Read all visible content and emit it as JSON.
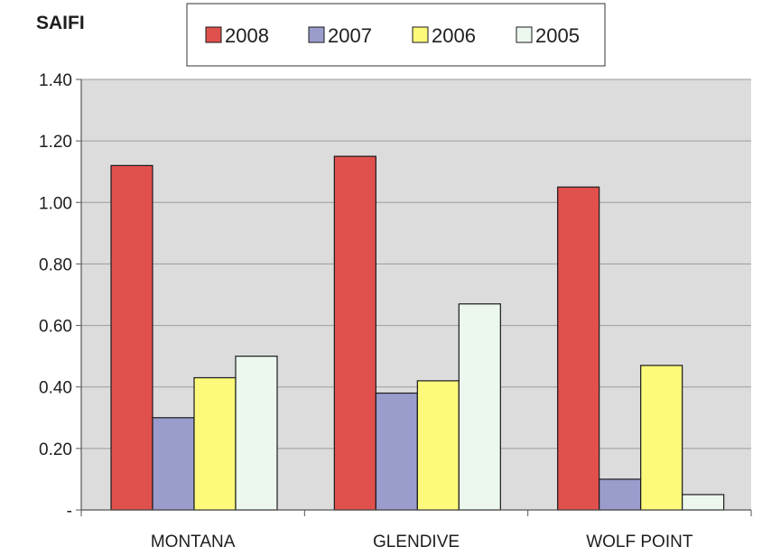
{
  "chart_data": {
    "type": "bar",
    "title": "SAIFI",
    "xlabel": "",
    "ylabel": "",
    "categories": [
      "MONTANA",
      "GLENDIVE",
      "WOLF POINT"
    ],
    "series": [
      {
        "name": "2008",
        "values": [
          1.12,
          1.15,
          1.05
        ],
        "color": "#e0504c"
      },
      {
        "name": "2007",
        "values": [
          0.3,
          0.38,
          0.1
        ],
        "color": "#9a9ccc"
      },
      {
        "name": "2006",
        "values": [
          0.43,
          0.42,
          0.47
        ],
        "color": "#fdfa7b"
      },
      {
        "name": "2005",
        "values": [
          0.5,
          0.67,
          0.05
        ],
        "color": "#ecf8ee"
      }
    ],
    "ylim": [
      0,
      1.4
    ],
    "yticks": [
      0,
      0.2,
      0.4,
      0.6,
      0.8,
      1.0,
      1.2,
      1.4
    ],
    "ytick_labels": [
      "-",
      "0.20",
      "0.40",
      "0.60",
      "0.80",
      "1.00",
      "1.20",
      "1.40"
    ],
    "grid": true,
    "legend_position": "top-center",
    "plot_background": "#dcdcdc"
  }
}
